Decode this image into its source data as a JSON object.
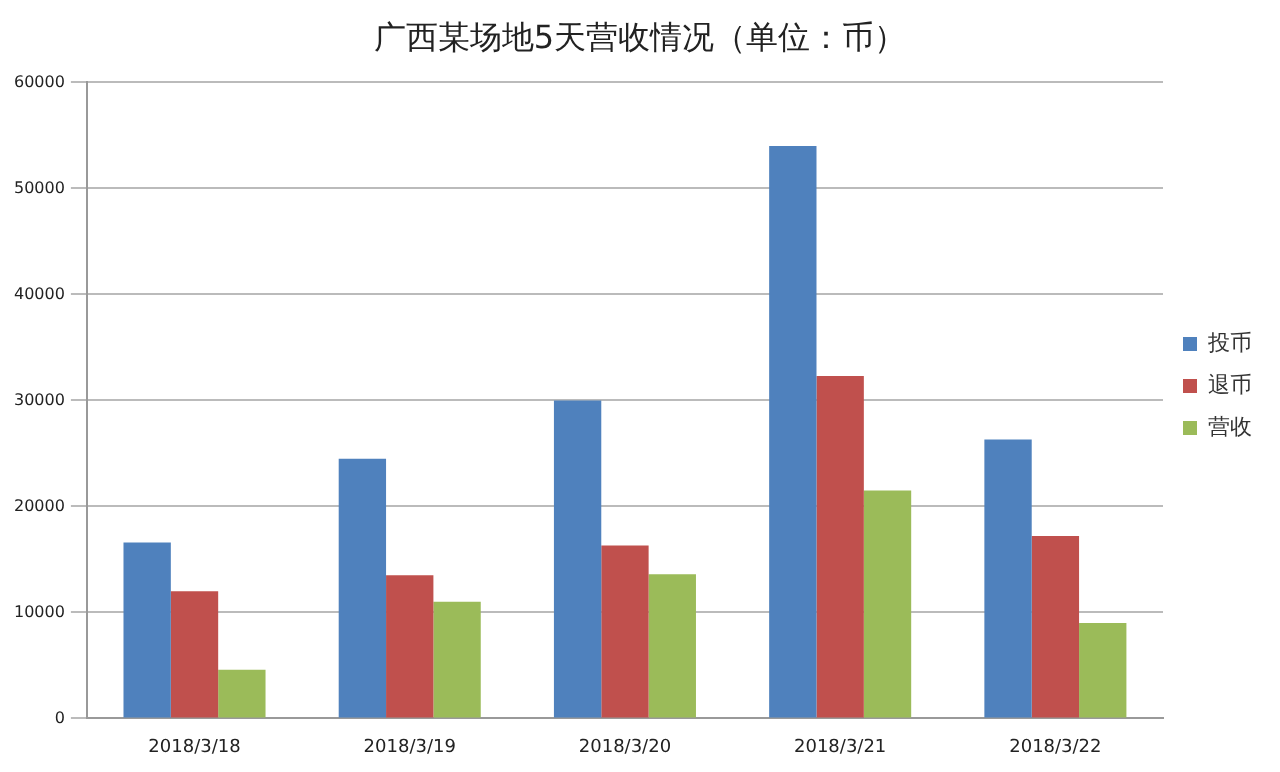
{
  "chart_data": {
    "type": "bar",
    "title": "广西某场地5天营收情况（单位：币）",
    "categories": [
      "2018/3/18",
      "2018/3/19",
      "2018/3/20",
      "2018/3/21",
      "2018/3/22"
    ],
    "series": [
      {
        "name": "投币",
        "color": "#4f81bd",
        "values": [
          16600,
          24500,
          30000,
          54000,
          26300
        ]
      },
      {
        "name": "退币",
        "color": "#c0504d",
        "values": [
          12000,
          13500,
          16300,
          32300,
          17200
        ]
      },
      {
        "name": "营收",
        "color": "#9bbb59",
        "values": [
          4600,
          11000,
          13600,
          21500,
          9000
        ]
      }
    ],
    "ylim": [
      0,
      60000
    ],
    "yticks": [
      0,
      10000,
      20000,
      30000,
      40000,
      50000,
      60000
    ],
    "grid": "y",
    "legend": "right"
  }
}
